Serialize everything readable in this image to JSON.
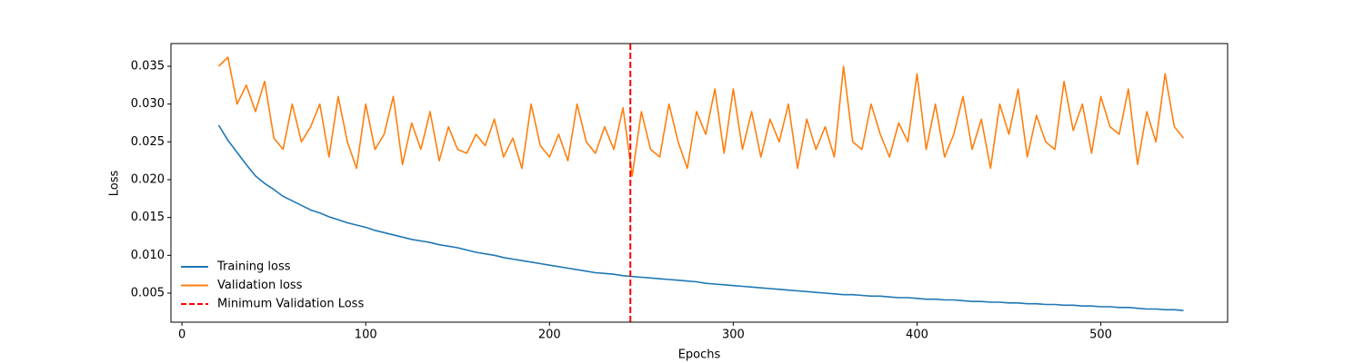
{
  "chart_data": {
    "type": "line",
    "xlabel": "Epochs",
    "ylabel": "Loss",
    "xlim": [
      -6,
      569
    ],
    "ylim": [
      0.00116,
      0.038
    ],
    "xticks": [
      0,
      100,
      200,
      300,
      400,
      500
    ],
    "yticks": [
      0.005,
      {
        "value": 0.01,
        "label": "0.010"
      },
      0.015,
      {
        "value": 0.02,
        "label": "0.020"
      },
      0.025,
      {
        "value": 0.03,
        "label": "0.030"
      },
      0.035
    ],
    "legend": "lower left",
    "x": [
      20,
      25,
      30,
      35,
      40,
      45,
      50,
      55,
      60,
      65,
      70,
      75,
      80,
      85,
      90,
      95,
      100,
      105,
      110,
      115,
      120,
      125,
      130,
      135,
      140,
      145,
      150,
      155,
      160,
      165,
      170,
      175,
      180,
      185,
      190,
      195,
      200,
      205,
      210,
      215,
      220,
      225,
      230,
      235,
      240,
      245,
      250,
      255,
      260,
      265,
      270,
      275,
      280,
      285,
      290,
      295,
      300,
      305,
      310,
      315,
      320,
      325,
      330,
      335,
      340,
      345,
      350,
      355,
      360,
      365,
      370,
      375,
      380,
      385,
      390,
      395,
      400,
      405,
      410,
      415,
      420,
      425,
      430,
      435,
      440,
      445,
      450,
      455,
      460,
      465,
      470,
      475,
      480,
      485,
      490,
      495,
      500,
      505,
      510,
      515,
      520,
      525,
      530,
      535,
      540,
      545
    ],
    "series": [
      {
        "name": "Training loss",
        "color": "#1f77b4",
        "values": [
          0.0272,
          0.0252,
          0.0236,
          0.022,
          0.0205,
          0.0195,
          0.0187,
          0.0178,
          0.0172,
          0.0166,
          0.016,
          0.0156,
          0.0151,
          0.0147,
          0.0143,
          0.014,
          0.0137,
          0.0133,
          0.013,
          0.0127,
          0.0124,
          0.0121,
          0.0119,
          0.0117,
          0.0114,
          0.0112,
          0.011,
          0.0107,
          0.0104,
          0.0102,
          0.01,
          0.0097,
          0.0095,
          0.0093,
          0.0091,
          0.0089,
          0.0087,
          0.0085,
          0.0083,
          0.0081,
          0.0079,
          0.0077,
          0.0076,
          0.0075,
          0.0073,
          0.0072,
          0.0071,
          0.007,
          0.0069,
          0.0068,
          0.0067,
          0.0066,
          0.0065,
          0.0063,
          0.0062,
          0.0061,
          0.006,
          0.0059,
          0.0058,
          0.0057,
          0.0056,
          0.0055,
          0.0054,
          0.0053,
          0.0052,
          0.0051,
          0.005,
          0.0049,
          0.0048,
          0.0048,
          0.0047,
          0.0046,
          0.0046,
          0.0045,
          0.0044,
          0.0044,
          0.0043,
          0.0042,
          0.0042,
          0.0041,
          0.0041,
          0.004,
          0.0039,
          0.0039,
          0.0038,
          0.0038,
          0.0037,
          0.0037,
          0.0036,
          0.0036,
          0.0035,
          0.0035,
          0.0034,
          0.0034,
          0.0033,
          0.0033,
          0.0032,
          0.0032,
          0.0031,
          0.0031,
          0.003,
          0.0029,
          0.0029,
          0.0028,
          0.0028,
          0.0027
        ]
      },
      {
        "name": "Validation loss",
        "color": "#ff7f0e",
        "values": [
          0.035,
          0.0362,
          0.03,
          0.0325,
          0.029,
          0.033,
          0.0255,
          0.024,
          0.03,
          0.025,
          0.027,
          0.03,
          0.023,
          0.031,
          0.025,
          0.0215,
          0.03,
          0.024,
          0.026,
          0.031,
          0.022,
          0.0275,
          0.024,
          0.029,
          0.0225,
          0.027,
          0.024,
          0.0235,
          0.026,
          0.0245,
          0.028,
          0.023,
          0.0255,
          0.0215,
          0.03,
          0.0245,
          0.023,
          0.026,
          0.0225,
          0.03,
          0.025,
          0.0235,
          0.027,
          0.024,
          0.0295,
          0.0205,
          0.029,
          0.024,
          0.023,
          0.03,
          0.025,
          0.0215,
          0.029,
          0.026,
          0.032,
          0.0235,
          0.032,
          0.024,
          0.029,
          0.023,
          0.028,
          0.025,
          0.03,
          0.0215,
          0.028,
          0.024,
          0.027,
          0.023,
          0.035,
          0.025,
          0.024,
          0.03,
          0.026,
          0.023,
          0.0275,
          0.025,
          0.034,
          0.024,
          0.03,
          0.023,
          0.026,
          0.031,
          0.024,
          0.028,
          0.0215,
          0.03,
          0.026,
          0.032,
          0.023,
          0.0285,
          0.025,
          0.024,
          0.033,
          0.0265,
          0.03,
          0.0235,
          0.031,
          0.027,
          0.026,
          0.032,
          0.022,
          0.029,
          0.025,
          0.034,
          0.027,
          0.0255
        ]
      }
    ],
    "markers": [
      {
        "name": "Minimum Validation Loss",
        "x": 244,
        "color": "#ff0000",
        "style": "dashed"
      }
    ]
  }
}
